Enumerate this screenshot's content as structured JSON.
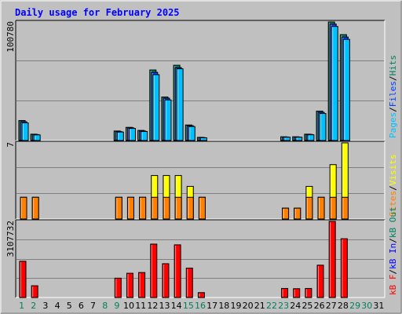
{
  "title": "Daily usage for February 2025",
  "colors": {
    "background": "#c0c0c0",
    "frame": "#ffffff",
    "title": "#0000ff",
    "hits": "#00805c",
    "files": "#0040ff",
    "pages": "#00c0ff",
    "sites": "#ff8000",
    "visits": "#ffff00",
    "kbin": "#0000ff",
    "kbout": "#00805c",
    "kbf": "#ff0000",
    "weekday": "#000000",
    "weekend": "#00805c"
  },
  "chart_data": [
    {
      "type": "bar",
      "panel": "hits-files-pages",
      "ymax_label": "100780",
      "ylim": [
        0,
        100780
      ],
      "side_label": {
        "pages": "Pages",
        "sep1": "/",
        "files": "Files",
        "sep2": "/",
        "hits": "Hits"
      },
      "categories": [
        "1",
        "2",
        "3",
        "4",
        "5",
        "6",
        "7",
        "8",
        "9",
        "10",
        "11",
        "12",
        "13",
        "14",
        "15",
        "16",
        "17",
        "18",
        "19",
        "20",
        "21",
        "22",
        "23",
        "24",
        "25",
        "26",
        "27",
        "28",
        "29",
        "30",
        "31"
      ],
      "series": [
        {
          "name": "Hits",
          "values": [
            17000,
            5400,
            0,
            0,
            0,
            0,
            0,
            0,
            8100,
            11200,
            8600,
            60000,
            37000,
            64000,
            13200,
            2700,
            0,
            0,
            0,
            0,
            0,
            0,
            3200,
            3200,
            5400,
            25000,
            100780,
            90000,
            0,
            0,
            0
          ]
        },
        {
          "name": "Files",
          "values": [
            16000,
            5100,
            0,
            0,
            0,
            0,
            0,
            0,
            7600,
            10800,
            8100,
            58000,
            36000,
            62000,
            12600,
            2500,
            0,
            0,
            0,
            0,
            0,
            0,
            3000,
            3000,
            5200,
            24000,
            99000,
            88000,
            0,
            0,
            0
          ]
        },
        {
          "name": "Pages",
          "values": [
            15000,
            4800,
            0,
            0,
            0,
            0,
            0,
            0,
            7200,
            10300,
            7700,
            56000,
            34500,
            61000,
            11900,
            2300,
            0,
            0,
            0,
            0,
            0,
            0,
            2800,
            2800,
            4900,
            23000,
            97000,
            86000,
            0,
            0,
            0
          ]
        }
      ]
    },
    {
      "type": "bar",
      "panel": "visits-sites",
      "ymax_label": "7",
      "ylim": [
        0,
        7
      ],
      "side_label": {
        "sites": "Sites",
        "sep1": "/",
        "visits": "Visits"
      },
      "categories": [
        "1",
        "2",
        "3",
        "4",
        "5",
        "6",
        "7",
        "8",
        "9",
        "10",
        "11",
        "12",
        "13",
        "14",
        "15",
        "16",
        "17",
        "18",
        "19",
        "20",
        "21",
        "22",
        "23",
        "24",
        "25",
        "26",
        "27",
        "28",
        "29",
        "30",
        "31"
      ],
      "series": [
        {
          "name": "Visits",
          "values": [
            2,
            2,
            0,
            0,
            0,
            0,
            0,
            0,
            2,
            2,
            2,
            4,
            4,
            4,
            3,
            2,
            0,
            0,
            0,
            0,
            0,
            0,
            1,
            1,
            3,
            2,
            5,
            7,
            0,
            0,
            0
          ]
        },
        {
          "name": "Sites",
          "values": [
            2,
            2,
            0,
            0,
            0,
            0,
            0,
            0,
            2,
            2,
            2,
            2,
            2,
            2,
            2,
            2,
            0,
            0,
            0,
            0,
            0,
            0,
            1,
            1,
            2,
            2,
            2,
            2,
            0,
            0,
            0
          ]
        }
      ]
    },
    {
      "type": "bar",
      "panel": "kbytes",
      "ymax_label": "3107732",
      "ylim": [
        0,
        3107732
      ],
      "side_label": {
        "kbf": "kB F",
        "sep1": "/",
        "kbin": "kB In",
        "sep2": "/",
        "kbout": "kB Out"
      },
      "categories": [
        "1",
        "2",
        "3",
        "4",
        "5",
        "6",
        "7",
        "8",
        "9",
        "10",
        "11",
        "12",
        "13",
        "14",
        "15",
        "16",
        "17",
        "18",
        "19",
        "20",
        "21",
        "22",
        "23",
        "24",
        "25",
        "26",
        "27",
        "28",
        "29",
        "30",
        "31"
      ],
      "series": [
        {
          "name": "kB F",
          "values": [
            1480000,
            480000,
            0,
            0,
            0,
            0,
            0,
            0,
            790000,
            990000,
            1020000,
            2180000,
            1380000,
            2150000,
            1200000,
            200000,
            0,
            0,
            0,
            0,
            0,
            0,
            370000,
            360000,
            370000,
            1320000,
            3107732,
            2400000,
            0,
            0,
            0
          ]
        }
      ]
    }
  ],
  "weekend_days": [
    1,
    2,
    8,
    9,
    15,
    16,
    22,
    23,
    29,
    30
  ]
}
